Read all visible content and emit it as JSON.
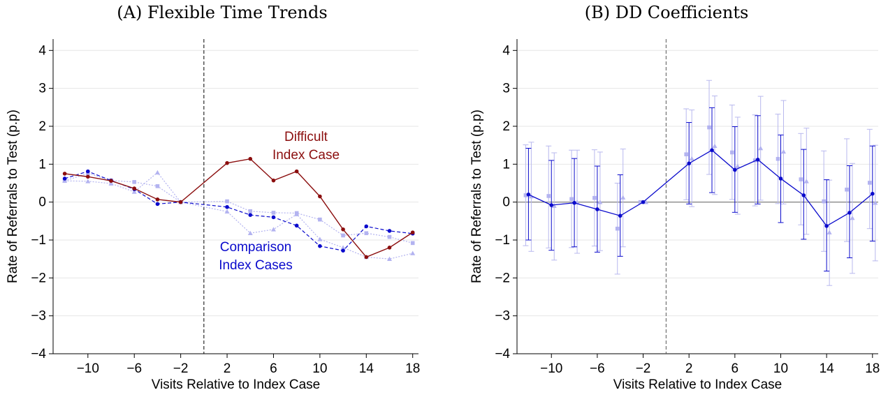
{
  "colors": {
    "difficult": "#8b0e0e",
    "comparison": "#0a0acc",
    "comparison_light": "#b3b3f0",
    "ci_light": "#b8b8ee",
    "grid": "#e6e6e6",
    "zero_line": "#7f7f7f"
  },
  "chart_data": [
    {
      "type": "line",
      "title": "(A)  Flexible Time Trends",
      "xlabel": "Visits Relative to Index Case",
      "ylabel": "Rate of Referrals to Test (p.p)",
      "xlim": [
        -13,
        18.5
      ],
      "ylim": [
        -4,
        4.3
      ],
      "xticks": [
        -10,
        -6,
        -2,
        2,
        6,
        10,
        14,
        18
      ],
      "yticks": [
        -4,
        -3,
        -2,
        -1,
        0,
        1,
        2,
        3,
        4
      ],
      "xtick_labels": [
        "−10",
        "−6",
        "−2",
        "2",
        "6",
        "10",
        "14",
        "18"
      ],
      "ytick_labels": [
        "−4",
        "−3",
        "−2",
        "−1",
        "0",
        "1",
        "2",
        "3",
        "4"
      ],
      "grid": true,
      "event_line_x": 0,
      "annotations": [
        {
          "lines": [
            "Difficult",
            "Index Case"
          ],
          "color_key": "difficult"
        },
        {
          "lines": [
            "Comparison",
            "Index Cases"
          ],
          "color_key": "comparison"
        }
      ],
      "series": [
        {
          "color_key": "difficult",
          "style": "solid",
          "marker": "circle",
          "x": [
            -12,
            -10,
            -8,
            -6,
            -4,
            -2,
            2,
            4,
            6,
            8,
            10,
            12,
            14,
            16,
            18
          ],
          "y": [
            0.75,
            0.67,
            0.56,
            0.36,
            0.07,
            0.0,
            1.03,
            1.14,
            0.57,
            0.81,
            0.15,
            -0.72,
            -1.45,
            -1.2,
            -0.8
          ]
        },
        {
          "color_key": "comparison",
          "style": "dashed",
          "marker": "circle",
          "x": [
            -12,
            -10,
            -8,
            -6,
            -4,
            -2,
            2,
            4,
            6,
            8,
            10,
            12,
            14,
            16,
            18
          ],
          "y": [
            0.62,
            0.81,
            0.57,
            0.34,
            -0.05,
            0.0,
            -0.13,
            -0.34,
            -0.4,
            -0.62,
            -1.16,
            -1.28,
            -0.64,
            -0.76,
            -0.83
          ]
        },
        {
          "color_key": "comparison_light",
          "style": "dotted",
          "marker": "square",
          "x": [
            -12,
            -10,
            -8,
            -6,
            -4,
            -2,
            2,
            4,
            6,
            8,
            10,
            12,
            14,
            16,
            18
          ],
          "y": [
            0.56,
            0.76,
            0.57,
            0.53,
            0.42,
            0.0,
            0.02,
            -0.24,
            -0.28,
            -0.29,
            -0.46,
            -0.88,
            -0.82,
            -0.92,
            -1.08
          ]
        },
        {
          "color_key": "comparison_light",
          "style": "dotted",
          "marker": "triangle",
          "x": [
            -12,
            -10,
            -8,
            -6,
            -4,
            -2,
            2,
            4,
            6,
            8,
            10,
            12,
            14,
            16,
            18
          ],
          "y": [
            0.56,
            0.55,
            0.49,
            0.27,
            0.78,
            0.0,
            -0.25,
            -0.82,
            -0.72,
            -0.32,
            -0.98,
            -1.2,
            -1.45,
            -1.5,
            -1.35
          ]
        }
      ]
    },
    {
      "type": "line",
      "title": "(B)  DD Coefficients",
      "xlabel": "Visits Relative to Index Case",
      "ylabel": "Rate of Referrals to Test (p.p)",
      "xlim": [
        -13,
        18.5
      ],
      "ylim": [
        -4,
        4.3
      ],
      "xticks": [
        -10,
        -6,
        -2,
        2,
        6,
        10,
        14,
        18
      ],
      "yticks": [
        -4,
        -3,
        -2,
        -1,
        0,
        1,
        2,
        3,
        4
      ],
      "xtick_labels": [
        "−10",
        "−6",
        "−2",
        "2",
        "6",
        "10",
        "14",
        "18"
      ],
      "ytick_labels": [
        "−4",
        "−3",
        "−2",
        "−1",
        "0",
        "1",
        "2",
        "3",
        "4"
      ],
      "grid": true,
      "event_line_x": 0,
      "zero_line": true,
      "main_series": {
        "color_key": "comparison",
        "x": [
          -12,
          -10,
          -8,
          -6,
          -4,
          -2,
          2,
          4,
          6,
          8,
          10,
          12,
          14,
          16,
          18
        ],
        "y": [
          0.2,
          -0.08,
          -0.02,
          -0.19,
          -0.36,
          0.0,
          1.02,
          1.37,
          0.85,
          1.12,
          0.62,
          0.18,
          -0.63,
          -0.28,
          0.22
        ],
        "ci_low": [
          -1.0,
          -1.27,
          -1.18,
          -1.32,
          -1.43,
          0.0,
          -0.05,
          0.25,
          -0.27,
          -0.05,
          -0.54,
          -0.98,
          -1.82,
          -1.47,
          -1.03
        ],
        "ci_high": [
          1.42,
          1.1,
          1.15,
          0.95,
          0.72,
          0.0,
          2.1,
          2.49,
          1.99,
          2.28,
          1.77,
          1.39,
          0.59,
          0.96,
          1.48
        ]
      },
      "alt_series": [
        {
          "marker": "square",
          "x": [
            -12,
            -10,
            -8,
            -6,
            -4,
            -2,
            2,
            4,
            6,
            8,
            10,
            12,
            14,
            16,
            18
          ],
          "y": [
            0.18,
            0.16,
            0.08,
            0.11,
            -0.7,
            0.0,
            1.26,
            1.97,
            1.31,
            1.1,
            1.14,
            0.6,
            0.02,
            0.33,
            0.51
          ],
          "ci_low": [
            -1.15,
            -1.21,
            -1.2,
            -1.16,
            -1.9,
            0.0,
            0.06,
            0.73,
            0.07,
            -0.1,
            -0.04,
            -0.6,
            -1.3,
            -1.04,
            -0.7
          ],
          "ci_high": [
            1.51,
            1.48,
            1.37,
            1.38,
            0.5,
            0.0,
            2.46,
            3.21,
            2.56,
            2.3,
            2.32,
            1.81,
            1.35,
            1.67,
            1.92
          ]
        },
        {
          "marker": "triangle",
          "x": [
            -12,
            -10,
            -8,
            -6,
            -4,
            -2,
            2,
            4,
            6,
            8,
            10,
            12,
            14,
            16,
            18
          ],
          "y": [
            0.15,
            -0.1,
            0.0,
            0.0,
            0.12,
            0.0,
            1.15,
            1.48,
            0.95,
            1.42,
            1.33,
            0.55,
            -0.8,
            -0.42,
            -0.02
          ],
          "ci_low": [
            -1.3,
            -1.53,
            -1.35,
            -1.28,
            -1.18,
            0.0,
            -0.12,
            0.2,
            -0.32,
            0.05,
            -0.05,
            -0.85,
            -2.2,
            -1.88,
            -1.55
          ],
          "ci_high": [
            1.58,
            1.3,
            1.37,
            1.32,
            1.4,
            0.0,
            2.43,
            2.8,
            2.24,
            2.79,
            2.68,
            1.95,
            0.58,
            1.02,
            1.5
          ]
        }
      ]
    }
  ]
}
